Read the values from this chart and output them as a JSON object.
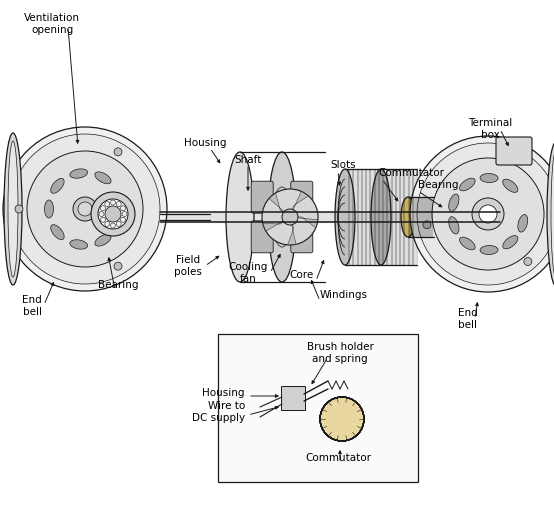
{
  "bg_color": "#ffffff",
  "line_color": "#1a1a1a",
  "labels": {
    "ventilation_opening": "Ventilation\nopening",
    "end_bell_left": "End\nbell",
    "bearing_left": "Bearing",
    "housing": "Housing",
    "field_poles": "Field\npoles",
    "shaft": "Shaft",
    "cooling_fan": "Cooling\nfan",
    "core": "Core",
    "windings": "Windings",
    "slots": "Slots",
    "commutator": "Commutator",
    "bearing_right": "Bearing",
    "terminal_box": "Terminal\nbox",
    "end_bell_right": "End\nbell",
    "brush_holder": "Brush holder\nand spring",
    "housing2": "Housing",
    "wire_dc": "Wire to\nDC supply",
    "commutator2": "Commutator"
  },
  "font_size": 7.5,
  "lw": 0.9
}
